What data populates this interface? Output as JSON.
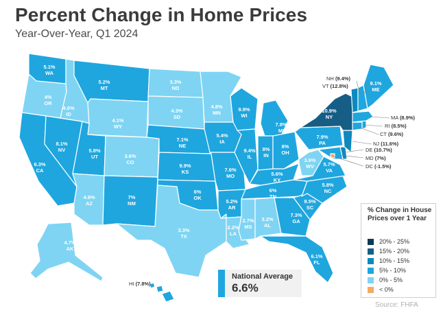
{
  "header": {
    "title": "Percent Change in Home Prices",
    "subtitle": "Year-Over-Year, Q1 2024"
  },
  "colors": {
    "c20_25": "#0c3a57",
    "c15_20": "#165e86",
    "c10_15": "#0d89be",
    "c5_10": "#1fa6df",
    "c0_5": "#7fd4f3",
    "neg": "#f5a961"
  },
  "states": [
    {
      "abbr": "WA",
      "value": "5.1%"
    },
    {
      "abbr": "OR",
      "value": "4%"
    },
    {
      "abbr": "CA",
      "value": "6.3%"
    },
    {
      "abbr": "ID",
      "value": "4.6%"
    },
    {
      "abbr": "NV",
      "value": "8.1%"
    },
    {
      "abbr": "MT",
      "value": "5.2%"
    },
    {
      "abbr": "WY",
      "value": "4.1%"
    },
    {
      "abbr": "UT",
      "value": "5.8%"
    },
    {
      "abbr": "AZ",
      "value": "4.9%"
    },
    {
      "abbr": "CO",
      "value": "3.6%"
    },
    {
      "abbr": "NM",
      "value": "7%"
    },
    {
      "abbr": "ND",
      "value": "3.3%"
    },
    {
      "abbr": "SD",
      "value": "4.3%"
    },
    {
      "abbr": "NE",
      "value": "7.1%"
    },
    {
      "abbr": "KS",
      "value": "9.9%"
    },
    {
      "abbr": "OK",
      "value": "6%"
    },
    {
      "abbr": "TX",
      "value": "3.3%"
    },
    {
      "abbr": "MN",
      "value": "4.8%"
    },
    {
      "abbr": "IA",
      "value": "5.4%"
    },
    {
      "abbr": "MO",
      "value": "7.6%"
    },
    {
      "abbr": "AR",
      "value": "5.2%"
    },
    {
      "abbr": "LA",
      "value": "2.2%"
    },
    {
      "abbr": "WI",
      "value": "9.9%"
    },
    {
      "abbr": "IL",
      "value": "9.4%"
    },
    {
      "abbr": "MI",
      "value": "7.8%"
    },
    {
      "abbr": "IN",
      "value": "8%"
    },
    {
      "abbr": "OH",
      "value": "8%"
    },
    {
      "abbr": "KY",
      "value": "5.6%"
    },
    {
      "abbr": "TN",
      "value": "6%"
    },
    {
      "abbr": "MS",
      "value": "2.7%"
    },
    {
      "abbr": "AL",
      "value": "3.2%"
    },
    {
      "abbr": "GA",
      "value": "7.3%"
    },
    {
      "abbr": "FL",
      "value": "6.1%"
    },
    {
      "abbr": "SC",
      "value": "8.5%"
    },
    {
      "abbr": "NC",
      "value": "5.8%"
    },
    {
      "abbr": "VA",
      "value": "5.7%"
    },
    {
      "abbr": "WV",
      "value": "3.6%"
    },
    {
      "abbr": "PA",
      "value": "7.9%"
    },
    {
      "abbr": "NY",
      "value": "10.9%"
    },
    {
      "abbr": "ME",
      "value": "9.1%"
    },
    {
      "abbr": "AK",
      "value": "4.7%"
    }
  ],
  "callouts": [
    {
      "abbr": "NH",
      "value": "(9.4%)"
    },
    {
      "abbr": "VT",
      "value": "(12.8%)"
    },
    {
      "abbr": "MA",
      "value": "(8.9%)"
    },
    {
      "abbr": "RI",
      "value": "(8.5%)"
    },
    {
      "abbr": "CT",
      "value": "(9.6%)"
    },
    {
      "abbr": "NJ",
      "value": "(11.6%)"
    },
    {
      "abbr": "DE",
      "value": "(10.7%)"
    },
    {
      "abbr": "MD",
      "value": "(7%)"
    },
    {
      "abbr": "DC",
      "value": "(-1.5%)"
    },
    {
      "abbr": "HI",
      "value": "(7.8%)"
    }
  ],
  "national": {
    "label": "National Average",
    "value": "6.6%"
  },
  "legend": {
    "title": "% Change in House Prices over 1 Year",
    "items": [
      {
        "label": "20% - 25%",
        "color": "#0c3a57"
      },
      {
        "label": "15% - 20%",
        "color": "#165e86"
      },
      {
        "label": "10% - 15%",
        "color": "#0d89be"
      },
      {
        "label": "5% - 10%",
        "color": "#1fa6df"
      },
      {
        "label": "0% - 5%",
        "color": "#7fd4f3"
      },
      {
        "label": "< 0%",
        "color": "#f5a961"
      }
    ]
  },
  "source": "Source: FHFA"
}
